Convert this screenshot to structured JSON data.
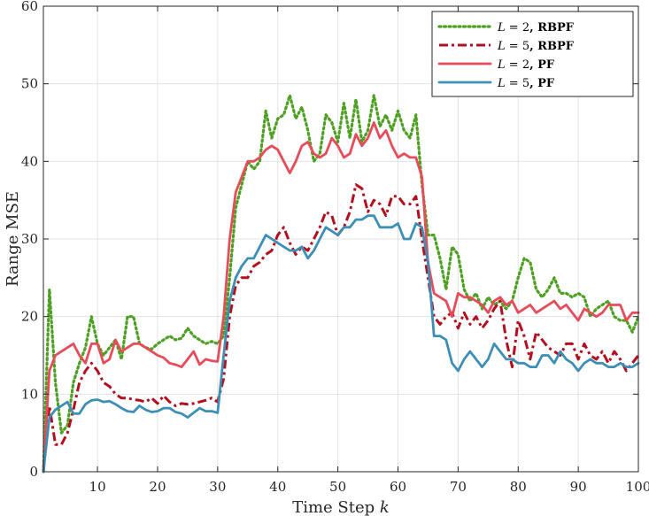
{
  "chart_data": {
    "type": "line",
    "title": "",
    "xlabel": "Time Step k",
    "ylabel": "Range MSE",
    "xlim": [
      1,
      100
    ],
    "ylim": [
      0,
      60
    ],
    "xticks": [
      10,
      20,
      30,
      40,
      50,
      60,
      70,
      80,
      90,
      100
    ],
    "yticks": [
      0,
      10,
      20,
      30,
      40,
      50,
      60
    ],
    "grid": true,
    "legend_position": "top-right",
    "series": [
      {
        "name": "L = 2, RBPF",
        "color": "#4da022",
        "dash": "dotted",
        "x": [
          1,
          2,
          3,
          4,
          5,
          6,
          7,
          8,
          9,
          10,
          11,
          12,
          13,
          14,
          15,
          16,
          17,
          18,
          19,
          20,
          21,
          22,
          23,
          24,
          25,
          26,
          27,
          28,
          29,
          30,
          31,
          32,
          33,
          34,
          35,
          36,
          37,
          38,
          39,
          40,
          41,
          42,
          43,
          44,
          45,
          46,
          47,
          48,
          49,
          50,
          51,
          52,
          53,
          54,
          55,
          56,
          57,
          58,
          59,
          60,
          61,
          62,
          63,
          64,
          65,
          66,
          67,
          68,
          69,
          70,
          71,
          72,
          73,
          74,
          75,
          76,
          77,
          78,
          79,
          80,
          81,
          82,
          83,
          84,
          85,
          86,
          87,
          88,
          89,
          90,
          91,
          92,
          93,
          94,
          95,
          96,
          97,
          98,
          99,
          100
        ],
        "values": [
          0,
          23.5,
          11.5,
          5,
          6,
          11.5,
          14,
          16,
          20,
          16.5,
          15,
          16,
          17,
          14.5,
          20,
          20,
          16.5,
          16,
          15.8,
          16.5,
          17,
          17.5,
          17,
          17.2,
          18.5,
          17.5,
          17,
          16.5,
          16.8,
          16.5,
          17.5,
          25,
          34,
          37,
          40,
          39,
          40,
          46.5,
          43,
          45.5,
          46,
          48.5,
          45.5,
          47,
          44,
          40,
          41,
          46,
          45,
          42.5,
          47.5,
          43,
          48,
          42.5,
          44,
          48.5,
          44.5,
          46,
          44,
          46.5,
          44,
          43,
          46,
          37,
          30.5,
          30.5,
          27.5,
          23.5,
          29,
          28,
          23.5,
          22,
          23,
          21,
          22.5,
          21.5,
          22,
          21,
          22,
          25,
          27.5,
          27,
          23.5,
          22.5,
          23.5,
          25,
          23,
          23,
          22.5,
          23,
          22.5,
          20,
          21,
          21.5,
          22,
          20,
          19.5,
          19.5,
          18,
          20
        ]
      },
      {
        "name": "L = 5, RBPF",
        "color": "#b40f1e",
        "dash": "dashdot",
        "x": [
          1,
          2,
          3,
          4,
          5,
          6,
          7,
          8,
          9,
          10,
          11,
          12,
          13,
          14,
          15,
          16,
          17,
          18,
          19,
          20,
          21,
          22,
          23,
          24,
          25,
          26,
          27,
          28,
          29,
          30,
          31,
          32,
          33,
          34,
          35,
          36,
          37,
          38,
          39,
          40,
          41,
          42,
          43,
          44,
          45,
          46,
          47,
          48,
          49,
          50,
          51,
          52,
          53,
          54,
          55,
          56,
          57,
          58,
          59,
          60,
          61,
          62,
          63,
          64,
          65,
          66,
          67,
          68,
          69,
          70,
          71,
          72,
          73,
          74,
          75,
          76,
          77,
          78,
          79,
          80,
          81,
          82,
          83,
          84,
          85,
          86,
          87,
          88,
          89,
          90,
          91,
          92,
          93,
          94,
          95,
          96,
          97,
          98,
          99,
          100
        ],
        "values": [
          0,
          8.5,
          3.5,
          3.5,
          5,
          8,
          11.5,
          13,
          14,
          13,
          11.5,
          11,
          10,
          9.5,
          9.5,
          9.3,
          9.2,
          9,
          9.5,
          8.8,
          9.8,
          9,
          8.5,
          8.8,
          8.7,
          8.8,
          9,
          9.2,
          9.5,
          9,
          12,
          20,
          24,
          25,
          25,
          26.5,
          27,
          28,
          28.5,
          30.5,
          31.5,
          29.5,
          28,
          29,
          28.5,
          30,
          31.5,
          33.5,
          33,
          30.5,
          31.5,
          33.5,
          37,
          36.5,
          33.5,
          35,
          34.5,
          33,
          35.5,
          35.5,
          34.5,
          34.5,
          35.5,
          30,
          25,
          20,
          19,
          20,
          20.5,
          18.5,
          20.5,
          19,
          20,
          18.5,
          19.5,
          21,
          22,
          17,
          13.5,
          19.5,
          17.5,
          14.5,
          18,
          17,
          16,
          15.5,
          15,
          16.5,
          16.5,
          14.5,
          16.5,
          15,
          14.5,
          15.5,
          14,
          15.5,
          14.5,
          13,
          14,
          15
        ]
      },
      {
        "name": "L = 2, PF",
        "color": "#e84b5a",
        "dash": "solid",
        "x": [
          1,
          2,
          3,
          4,
          5,
          6,
          7,
          8,
          9,
          10,
          11,
          12,
          13,
          14,
          15,
          16,
          17,
          18,
          19,
          20,
          21,
          22,
          23,
          24,
          25,
          26,
          27,
          28,
          29,
          30,
          31,
          32,
          33,
          34,
          35,
          36,
          37,
          38,
          39,
          40,
          41,
          42,
          43,
          44,
          45,
          46,
          47,
          48,
          49,
          50,
          51,
          52,
          53,
          54,
          55,
          56,
          57,
          58,
          59,
          60,
          61,
          62,
          63,
          64,
          65,
          66,
          67,
          68,
          69,
          70,
          71,
          72,
          73,
          74,
          75,
          76,
          77,
          78,
          79,
          80,
          81,
          82,
          83,
          84,
          85,
          86,
          87,
          88,
          89,
          90,
          91,
          92,
          93,
          94,
          95,
          96,
          97,
          98,
          99,
          100
        ],
        "values": [
          0,
          13,
          15,
          15.5,
          16,
          16.5,
          15,
          14,
          16.5,
          16.5,
          14,
          14.5,
          17,
          15.5,
          16,
          16.5,
          16.5,
          16,
          15.5,
          15,
          14.7,
          14,
          13.8,
          13.5,
          14.5,
          15.5,
          13.8,
          14.5,
          14.3,
          14.2,
          20,
          30,
          36,
          38,
          40,
          40,
          40.5,
          41.5,
          42,
          41.5,
          40,
          38.5,
          40,
          42,
          42.5,
          41,
          40.5,
          41,
          43,
          42,
          40.5,
          41,
          43.5,
          42,
          43,
          45,
          43,
          44,
          42,
          40.5,
          41,
          40.5,
          40.5,
          38,
          27,
          23,
          22.5,
          22,
          20,
          23,
          22.5,
          22.5,
          22,
          21.5,
          20.5,
          22,
          22.5,
          21.5,
          22,
          20.5,
          21,
          21.5,
          20.5,
          21,
          21.5,
          22,
          21,
          21.5,
          20.5,
          19.5,
          21,
          20.5,
          20,
          20.5,
          21.5,
          21.5,
          21.5,
          19.5,
          20.5,
          20.5
        ]
      },
      {
        "name": "L = 5, PF",
        "color": "#3d8fb5",
        "dash": "solid",
        "x": [
          1,
          2,
          3,
          4,
          5,
          6,
          7,
          8,
          9,
          10,
          11,
          12,
          13,
          14,
          15,
          16,
          17,
          18,
          19,
          20,
          21,
          22,
          23,
          24,
          25,
          26,
          27,
          28,
          29,
          30,
          31,
          32,
          33,
          34,
          35,
          36,
          37,
          38,
          39,
          40,
          41,
          42,
          43,
          44,
          45,
          46,
          47,
          48,
          49,
          50,
          51,
          52,
          53,
          54,
          55,
          56,
          57,
          58,
          59,
          60,
          61,
          62,
          63,
          64,
          65,
          66,
          67,
          68,
          69,
          70,
          71,
          72,
          73,
          74,
          75,
          76,
          77,
          78,
          79,
          80,
          81,
          82,
          83,
          84,
          85,
          86,
          87,
          88,
          89,
          90,
          91,
          92,
          93,
          94,
          95,
          96,
          97,
          98,
          99,
          100
        ],
        "values": [
          0,
          7,
          8,
          8.5,
          9,
          7.5,
          7.5,
          8.7,
          9.2,
          9.3,
          9,
          9.1,
          8.7,
          8.2,
          7.8,
          7.7,
          8.5,
          8,
          7.7,
          7.8,
          8.2,
          8.2,
          7.7,
          7.5,
          7,
          7.6,
          8.2,
          7.8,
          7.8,
          7.6,
          15,
          22,
          25,
          26.5,
          27.5,
          27.5,
          29,
          30.5,
          30,
          29.5,
          29,
          28.5,
          28.5,
          29,
          27.5,
          28.5,
          30,
          31.5,
          31,
          30.5,
          31.5,
          31.5,
          32.5,
          32.5,
          33,
          33,
          31.5,
          31.5,
          31.5,
          32,
          30,
          30,
          32,
          31.5,
          27,
          17.5,
          17.5,
          17,
          14,
          13,
          14.5,
          15.5,
          14.5,
          13.5,
          14.5,
          16.5,
          15.5,
          14.5,
          14.5,
          14,
          14,
          13.5,
          13.5,
          15,
          15,
          14,
          15.5,
          14.5,
          14,
          13,
          14,
          14.5,
          14,
          14,
          13.5,
          13.5,
          14,
          13.5,
          13.5,
          14
        ]
      }
    ],
    "legend": [
      {
        "var": "L",
        "value": "2",
        "method": "RBPF"
      },
      {
        "var": "L",
        "value": "5",
        "method": "RBPF"
      },
      {
        "var": "L",
        "value": "2",
        "method": "PF"
      },
      {
        "var": "L",
        "value": "5",
        "method": "PF"
      }
    ]
  }
}
